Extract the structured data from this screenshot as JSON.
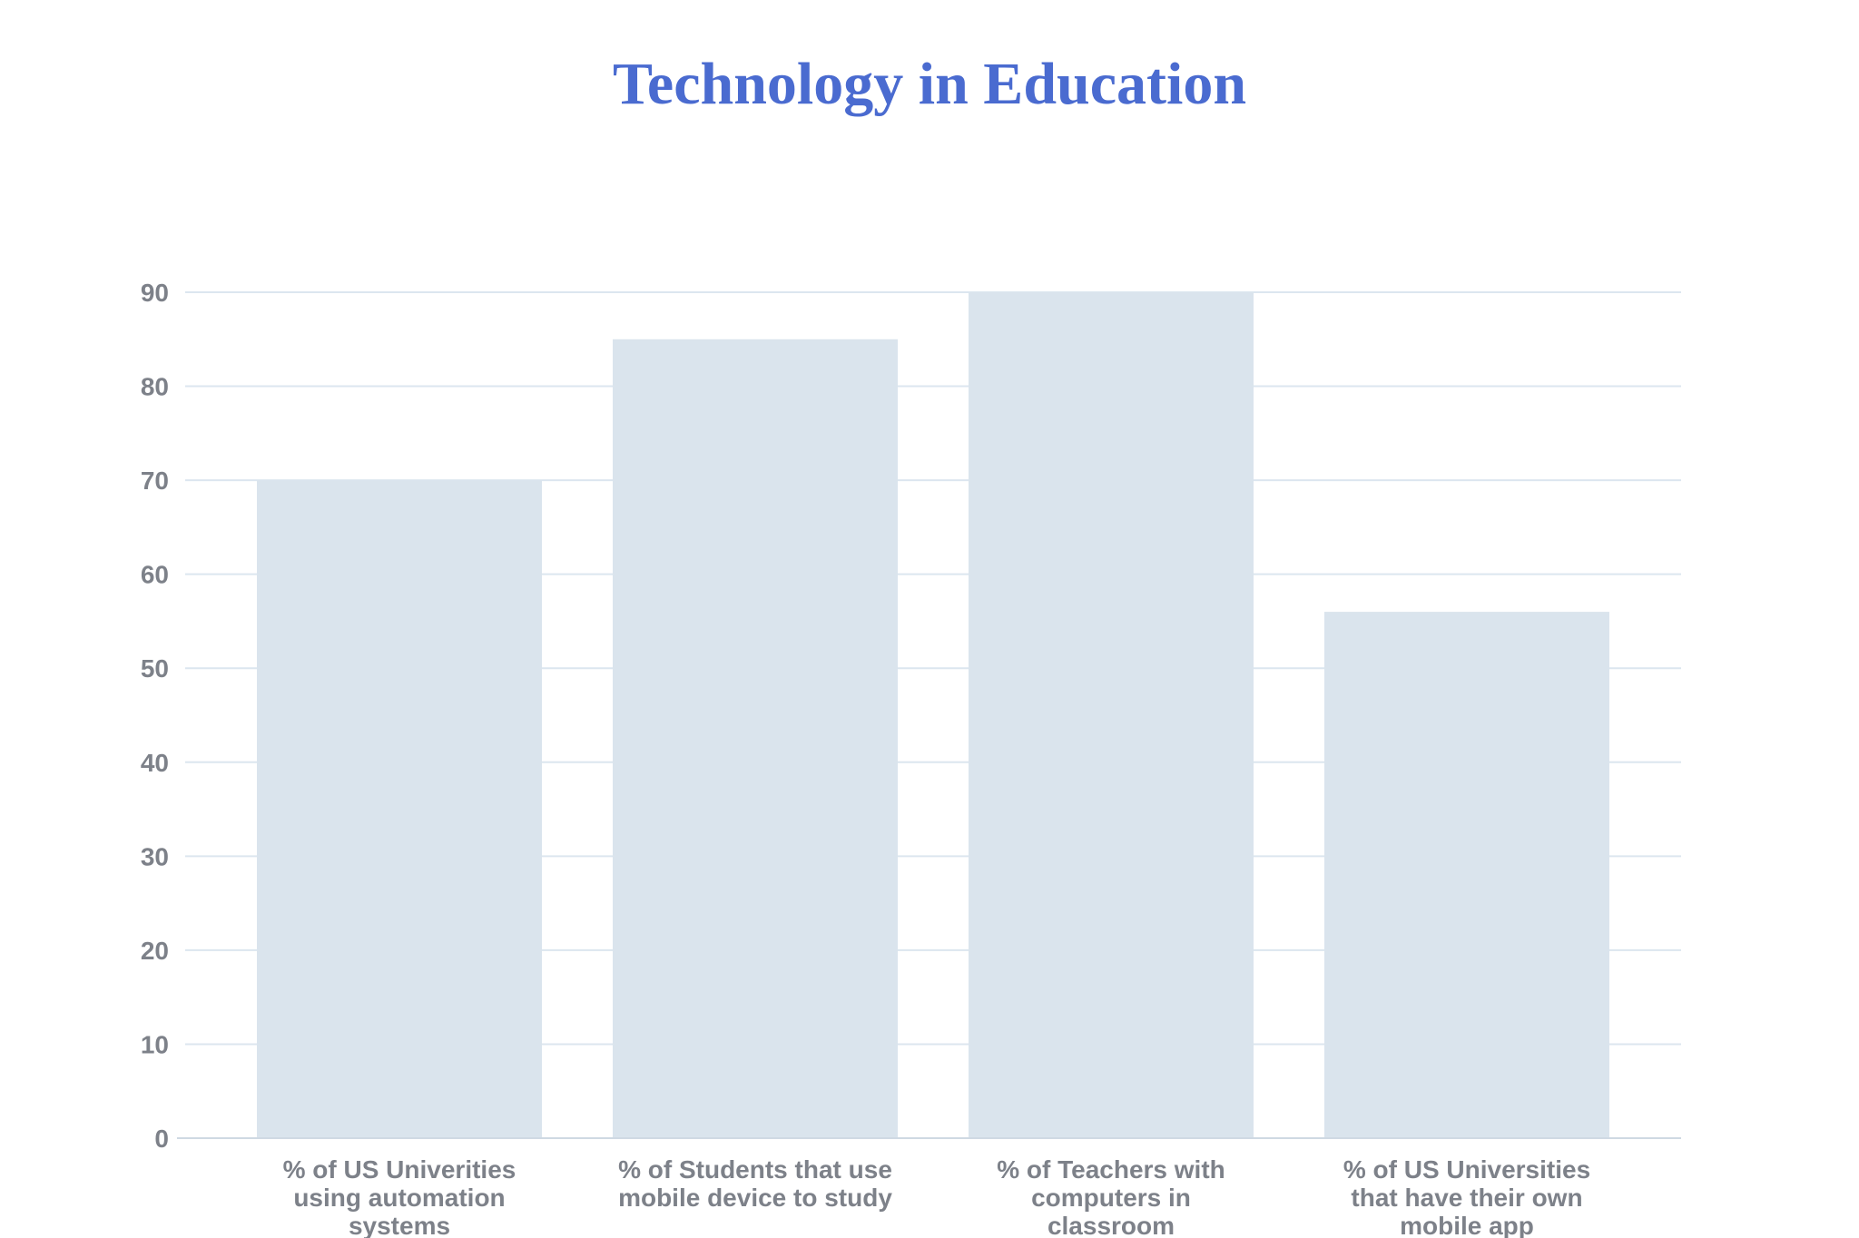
{
  "chart_data": {
    "type": "bar",
    "title": "Technology in Education",
    "xlabel": "",
    "ylabel": "",
    "ylim": [
      0,
      90
    ],
    "yticks": [
      0,
      10,
      20,
      30,
      40,
      50,
      60,
      70,
      80,
      90
    ],
    "grid": true,
    "categories": [
      [
        "% of US Univerities",
        "using automation",
        "systems"
      ],
      [
        "% of Students that use",
        "mobile device to study"
      ],
      [
        "% of Teachers with",
        "computers in",
        "classroom"
      ],
      [
        "% of US Universities",
        "that have their own",
        "mobile app"
      ]
    ],
    "values": [
      70,
      85,
      90,
      56
    ],
    "colors": {
      "bar": "#dae4ed",
      "grid": "#dce6ef",
      "axis": "#cfd9e3",
      "title": "#4a6bd0",
      "text": "#7d8189"
    }
  }
}
